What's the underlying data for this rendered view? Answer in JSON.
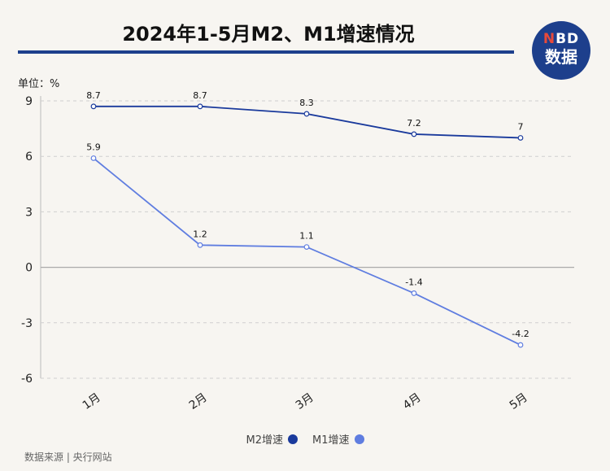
{
  "title": "2024年1-5月M2、M1增速情况",
  "logo": {
    "line1_n": "N",
    "line1_rest": "BD",
    "line2": "数据"
  },
  "unit_label": "单位：%",
  "source": "数据来源 | 央行网站",
  "colors": {
    "m2": "#1a3a9c",
    "m1": "#5f7de0",
    "accent": "#1d3f8c"
  },
  "chart_data": {
    "type": "line",
    "categories": [
      "1月",
      "2月",
      "3月",
      "4月",
      "5月"
    ],
    "series": [
      {
        "name": "M2增速",
        "values": [
          8.7,
          8.7,
          8.3,
          7.2,
          7
        ]
      },
      {
        "name": "M1增速",
        "values": [
          5.9,
          1.2,
          1.1,
          -1.4,
          -4.2
        ]
      }
    ],
    "ylim": [
      -6,
      9
    ],
    "yticks": [
      -6,
      -3,
      0,
      3,
      6,
      9
    ],
    "grid": true,
    "legend": "bottom-center"
  }
}
